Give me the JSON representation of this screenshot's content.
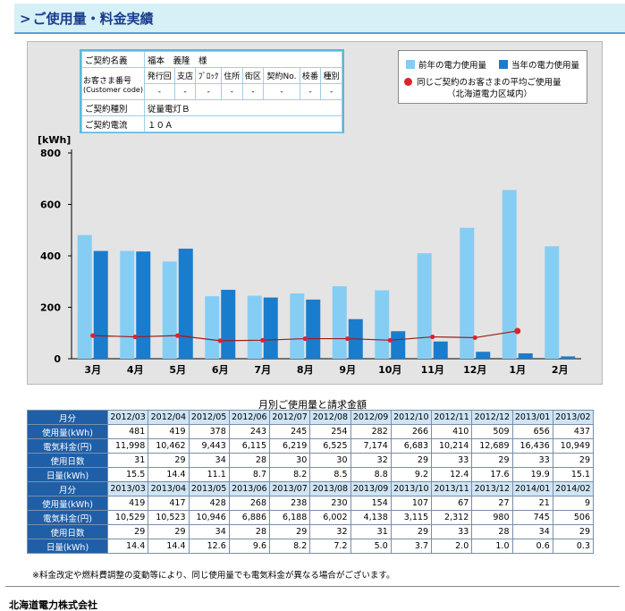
{
  "header": {
    "arrow": ">",
    "title": "ご使用量・料金実績"
  },
  "contract": {
    "name_label": "ご契約名義",
    "name_value": "福本　義隆　様",
    "customer_label": "お客さま番号",
    "customer_label_en": "(Customer code)",
    "code_headers": [
      "発行回",
      "支店",
      "ﾌﾞﾛｯｸ",
      "住所",
      "街区",
      "契約No.",
      "枝番",
      "種別"
    ],
    "code_values": [
      "-",
      "-",
      "-",
      "-",
      "-",
      "-",
      "-",
      "-"
    ],
    "type_label": "ご契約種別",
    "type_value": "従量電灯Ｂ",
    "current_label": "ご契約電流",
    "current_value": "１０Ａ"
  },
  "legend": {
    "prev_year": "前年の電力使用量",
    "this_year": "当年の電力使用量",
    "avg_line1": "同じご契約のお客さまの平均ご使用量",
    "avg_line2": "（北海道電力区域内）"
  },
  "colors": {
    "prev": "#86cdf4",
    "curr": "#1a7ccc",
    "avg": "#e0202a",
    "avg_line": "#a01818",
    "header_bg": "#1f5fa8",
    "month_bg": "#cfe5f5"
  },
  "chart_data": {
    "type": "bar",
    "ylabel": "[kWh]",
    "ylim": [
      0,
      800
    ],
    "yticks": [
      0,
      200,
      400,
      600,
      800
    ],
    "categories": [
      "3月",
      "4月",
      "5月",
      "6月",
      "7月",
      "8月",
      "9月",
      "10月",
      "11月",
      "12月",
      "1月",
      "2月"
    ],
    "series": [
      {
        "name": "前年の電力使用量",
        "values": [
          481,
          419,
          378,
          243,
          245,
          254,
          282,
          266,
          410,
          509,
          656,
          437
        ]
      },
      {
        "name": "当年の電力使用量",
        "values": [
          419,
          417,
          428,
          268,
          238,
          230,
          154,
          107,
          67,
          27,
          21,
          9
        ]
      },
      {
        "name": "同じご契約のお客さまの平均ご使用量",
        "values": [
          90,
          85,
          90,
          70,
          72,
          78,
          78,
          72,
          85,
          82,
          108,
          null
        ]
      }
    ]
  },
  "table": {
    "title": "月別ご使用量と請求金額",
    "month_label": "月分",
    "row_labels": [
      "使用量(kWh)",
      "電気料金(円)",
      "使用日数",
      "日量(kWh)"
    ],
    "blocks": [
      {
        "months": [
          "2012/03",
          "2012/04",
          "2012/05",
          "2012/06",
          "2012/07",
          "2012/08",
          "2012/09",
          "2012/10",
          "2012/11",
          "2012/12",
          "2013/01",
          "2013/02"
        ],
        "rows": [
          [
            "481",
            "419",
            "378",
            "243",
            "245",
            "254",
            "282",
            "266",
            "410",
            "509",
            "656",
            "437"
          ],
          [
            "11,998",
            "10,462",
            "9,443",
            "6,115",
            "6,219",
            "6,525",
            "7,174",
            "6,683",
            "10,214",
            "12,689",
            "16,436",
            "10,949"
          ],
          [
            "31",
            "29",
            "34",
            "28",
            "30",
            "30",
            "32",
            "29",
            "33",
            "29",
            "33",
            "29"
          ],
          [
            "15.5",
            "14.4",
            "11.1",
            "8.7",
            "8.2",
            "8.5",
            "8.8",
            "9.2",
            "12.4",
            "17.6",
            "19.9",
            "15.1"
          ]
        ]
      },
      {
        "months": [
          "2013/03",
          "2013/04",
          "2013/05",
          "2013/06",
          "2013/07",
          "2013/08",
          "2013/09",
          "2013/10",
          "2013/11",
          "2013/12",
          "2014/01",
          "2014/02"
        ],
        "rows": [
          [
            "419",
            "417",
            "428",
            "268",
            "238",
            "230",
            "154",
            "107",
            "67",
            "27",
            "21",
            "9"
          ],
          [
            "10,529",
            "10,523",
            "10,946",
            "6,886",
            "6,188",
            "6,002",
            "4,138",
            "3,115",
            "2,312",
            "980",
            "745",
            "506"
          ],
          [
            "29",
            "29",
            "34",
            "28",
            "29",
            "32",
            "31",
            "29",
            "33",
            "28",
            "34",
            "29"
          ],
          [
            "14.4",
            "14.4",
            "12.6",
            "9.6",
            "8.2",
            "7.2",
            "5.0",
            "3.7",
            "2.0",
            "1.0",
            "0.6",
            "0.3"
          ]
        ]
      }
    ]
  },
  "note": "※料金改定や燃料費調整の変動等により、同じ使用量でも電気料金が異なる場合がございます。",
  "company": "北海道電力株式会社"
}
